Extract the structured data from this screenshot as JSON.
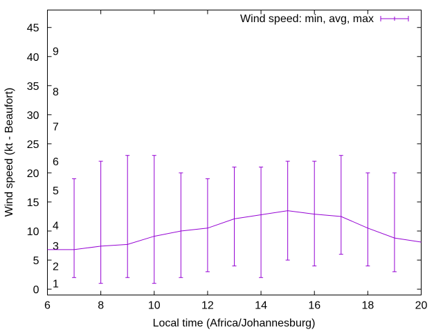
{
  "chart_data": {
    "type": "line",
    "title": "",
    "xlabel": "Local time (Africa/Johannesburg)",
    "ylabel": "Wind speed (kt - Beaufort)",
    "xlim": [
      6,
      20
    ],
    "ylim": [
      -1,
      48
    ],
    "xticks": [
      6,
      8,
      10,
      12,
      14,
      16,
      18,
      20
    ],
    "yticks": [
      0,
      5,
      10,
      15,
      20,
      25,
      30,
      35,
      40,
      45
    ],
    "grid": false,
    "legend_position": "top-right",
    "beaufort_labels": [
      {
        "label": "1",
        "y": 1
      },
      {
        "label": "2",
        "y": 4
      },
      {
        "label": "3",
        "y": 7.5
      },
      {
        "label": "4",
        "y": 11
      },
      {
        "label": "5",
        "y": 17
      },
      {
        "label": "6",
        "y": 22
      },
      {
        "label": "7",
        "y": 28
      },
      {
        "label": "8",
        "y": 34
      },
      {
        "label": "9",
        "y": 41
      }
    ],
    "series": [
      {
        "name": "Wind speed: min, avg, max",
        "color": "#9400d3",
        "x": [
          6,
          7,
          8,
          9,
          10,
          11,
          12,
          13,
          14,
          15,
          16,
          17,
          18,
          19,
          20
        ],
        "avg": [
          6.8,
          6.8,
          7.4,
          7.7,
          9.1,
          10.0,
          10.5,
          12.1,
          12.8,
          13.5,
          12.9,
          12.5,
          10.5,
          8.8,
          8.1
        ],
        "min": [
          null,
          2,
          1,
          2,
          1,
          2,
          3,
          4,
          2,
          5,
          4,
          6,
          4,
          3,
          null
        ],
        "max": [
          null,
          19,
          22,
          23,
          23,
          20,
          19,
          21,
          21,
          22,
          22,
          23,
          20,
          20,
          null
        ]
      }
    ]
  }
}
